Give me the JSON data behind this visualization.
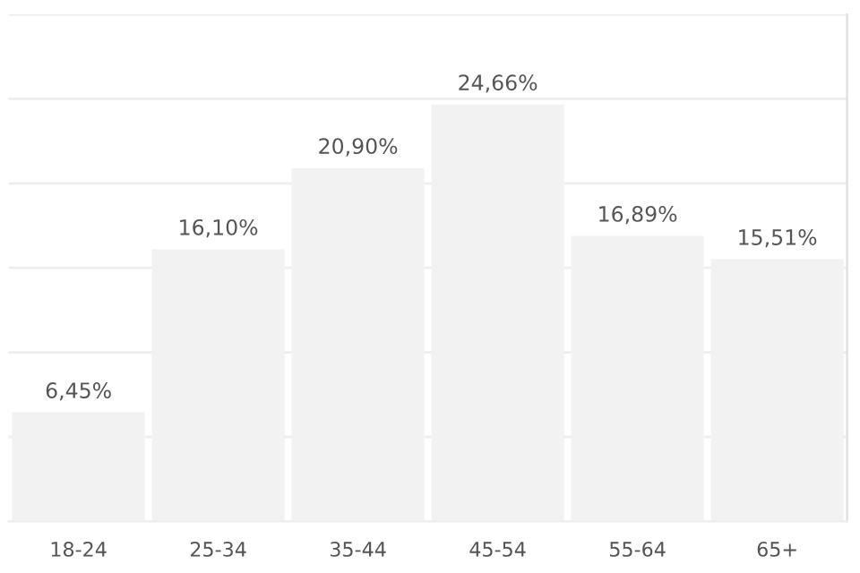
{
  "chart_data": {
    "type": "bar",
    "categories": [
      "18-24",
      "25-34",
      "35-44",
      "45-54",
      "55-64",
      "65+"
    ],
    "values": [
      6.45,
      16.1,
      20.9,
      24.66,
      16.89,
      15.51
    ],
    "value_labels": [
      "6,45%",
      "16,10%",
      "20,90%",
      "24,66%",
      "16,89%",
      "15,51%"
    ],
    "color": "#f2f2f2",
    "ylim": [
      0,
      30
    ],
    "yticks": [
      {
        "value": 0,
        "label": null
      },
      {
        "value": 5,
        "label": null
      },
      {
        "value": 10,
        "label": null
      },
      {
        "value": 15,
        "label": null
      },
      {
        "value": 20,
        "label": null
      },
      {
        "value": 25,
        "label": null
      },
      {
        "value": 30,
        "label": null
      }
    ],
    "tick_labels": "x",
    "grid": "y"
  }
}
